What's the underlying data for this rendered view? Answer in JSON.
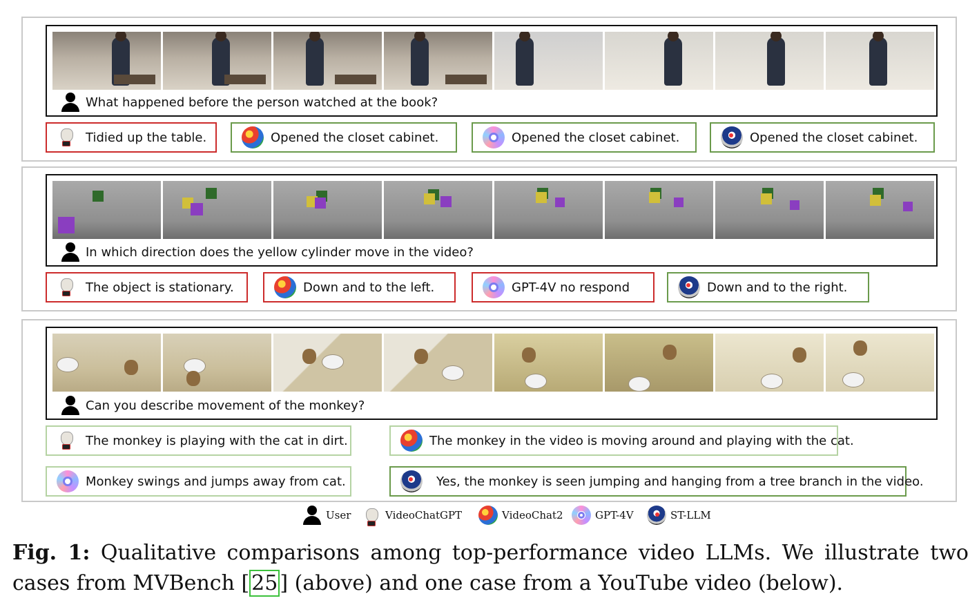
{
  "cases": [
    {
      "question": "What happened before the person watched at the book?",
      "answers": [
        {
          "model_icon": "videochatgpt-goat-icon",
          "text": "Tidied up the table.",
          "verdict": "wrong"
        },
        {
          "model_icon": "videochat2-parrot-icon",
          "text": "Opened the closet cabinet.",
          "verdict": "correct"
        },
        {
          "model_icon": "gpt4v-icon",
          "text": "Opened the closet cabinet.",
          "verdict": "correct"
        },
        {
          "model_icon": "stllm-icon",
          "text": "Opened the closet cabinet.",
          "verdict": "correct"
        }
      ]
    },
    {
      "question": "In which direction does the yellow cylinder move in the video?",
      "answers": [
        {
          "model_icon": "videochatgpt-goat-icon",
          "text": "The object is stationary.",
          "verdict": "wrong"
        },
        {
          "model_icon": "videochat2-parrot-icon",
          "text": "Down and to the left.",
          "verdict": "wrong"
        },
        {
          "model_icon": "gpt4v-icon",
          "text": "GPT-4V no respond",
          "verdict": "wrong"
        },
        {
          "model_icon": "stllm-icon",
          "text": "Down and to the right.",
          "verdict": "correct"
        }
      ]
    },
    {
      "question": "Can you describe movement of the monkey?",
      "answers": [
        {
          "model_icon": "videochatgpt-goat-icon",
          "text": "The monkey is playing with the cat in dirt.",
          "verdict": "partial"
        },
        {
          "model_icon": "videochat2-parrot-icon",
          "text": "The monkey in the video is moving around and playing with the cat.",
          "verdict": "partial"
        },
        {
          "model_icon": "gpt4v-icon",
          "text": "Monkey swings and jumps away from cat.",
          "verdict": "partial"
        },
        {
          "model_icon": "stllm-icon",
          "text": "Yes, the monkey is seen jumping and hanging from a tree branch in the video.",
          "verdict": "correct"
        }
      ]
    }
  ],
  "legend": {
    "user": "User",
    "videochatgpt": "VideoChatGPT",
    "videochat2": "VideoChat2",
    "gpt4v": "GPT-4V",
    "stllm": "ST-LLM"
  },
  "caption": {
    "label": "Fig. 1:",
    "text_before_ref": "Qualitative comparisons among top-performance video LLMs. We illustrate two cases from MVBench",
    "ref": "25",
    "text_after_ref": "(above) and one case from a YouTube video (below)."
  },
  "colors": {
    "wrong_border": "#cc2b2b",
    "correct_border": "#6a9a4b",
    "partial_border": "#b5d3a3",
    "ref_box": "#3cc13c"
  }
}
